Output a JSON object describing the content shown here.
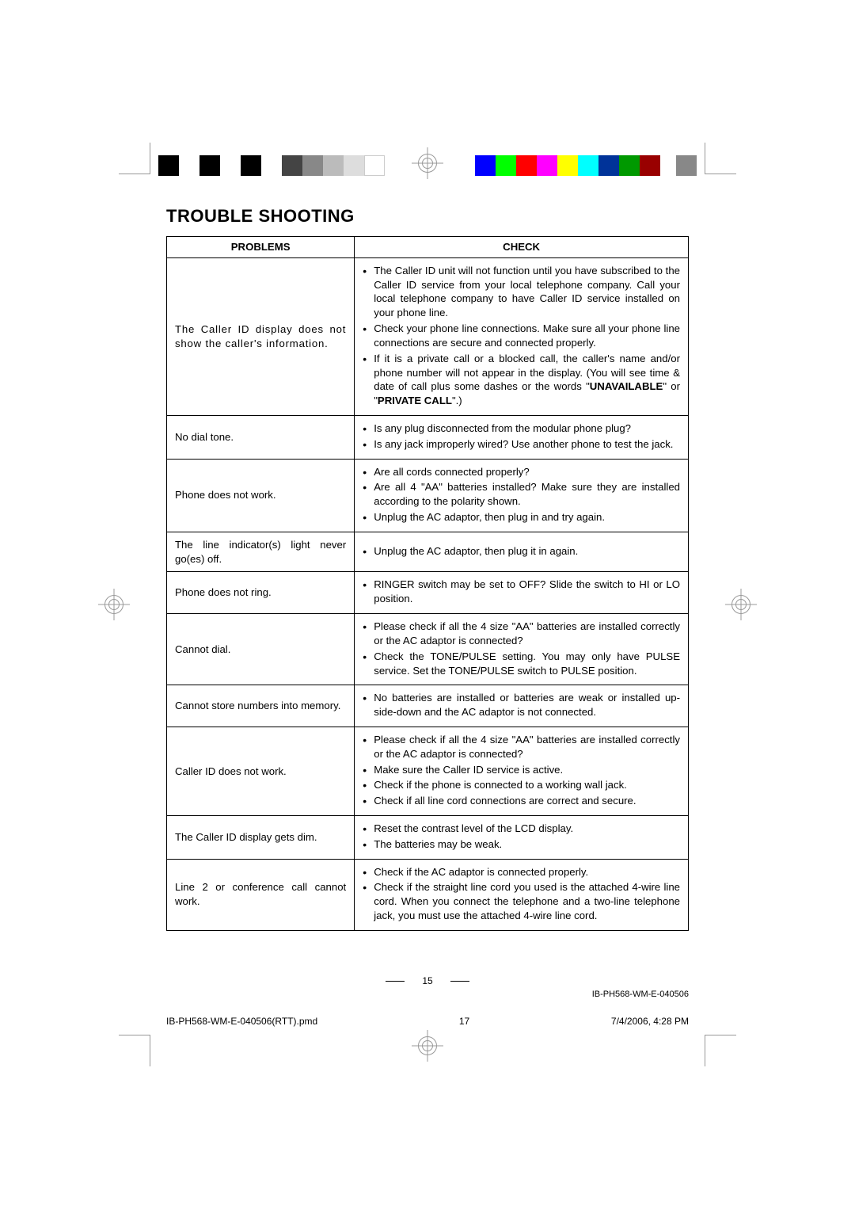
{
  "colors": {
    "swatches": [
      "#0000ff",
      "#00ff00",
      "#ff0000",
      "#ff00ff",
      "#ffff00",
      "#00ffff",
      "#003399",
      "#009900",
      "#990000"
    ]
  },
  "title": "TROUBLE SHOOTING",
  "headers": {
    "problems": "PROBLEMS",
    "check": "CHECK"
  },
  "rows": [
    {
      "problem": "The Caller ID display does not show the caller's information.",
      "checks": [
        "The Caller ID unit will not function until you have subscribed to the Caller ID service from your local telephone company. Call your local telephone company to have Caller ID service installed on your phone line.",
        "Check your phone line connections. Make sure all your phone line connections are secure and connected properly.",
        "If it is a private call or a blocked call, the caller's name and/or phone number will not appear in the display. (You will see time & date of call plus some dashes or the words \"UNAVAILABLE\" or \"PRIVATE CALL\".)"
      ]
    },
    {
      "problem": "No dial tone.",
      "checks": [
        "Is any plug disconnected from the modular phone plug?",
        "Is any jack improperly wired? Use another phone to test the jack."
      ]
    },
    {
      "problem": "Phone does not work.",
      "checks": [
        "Are all cords connected properly?",
        "Are all 4 \"AA\" batteries installed? Make sure they are installed according to the polarity shown.",
        "Unplug the AC adaptor, then plug in and try again."
      ]
    },
    {
      "problem": "The line indicator(s) light never go(es) off.",
      "checks": [
        "Unplug the AC adaptor, then plug it in again."
      ]
    },
    {
      "problem": "Phone does not ring.",
      "checks": [
        "RINGER switch may be set to OFF? Slide the switch to HI or LO position."
      ]
    },
    {
      "problem": "Cannot dial.",
      "checks": [
        "Please check if all the 4 size \"AA\" batteries are installed correctly or the AC adaptor is connected?",
        "Check the TONE/PULSE setting. You may only have PULSE service. Set the TONE/PULSE switch to PULSE position."
      ]
    },
    {
      "problem": "Cannot store numbers into memory.",
      "checks": [
        "No batteries are installed or batteries are weak or installed up-side-down and the AC adaptor is not connected."
      ]
    },
    {
      "problem": "Caller ID does not work.",
      "checks": [
        "Please check if all the 4 size \"AA\" batteries are installed correctly or the AC adaptor is connected?",
        "Make sure the Caller ID service is active.",
        "Check if the phone is connected to a working wall jack.",
        "Check if all line cord connections are correct and secure."
      ]
    },
    {
      "problem": "The Caller ID display gets dim.",
      "checks": [
        "Reset the contrast level of the LCD display.",
        "The batteries may be weak."
      ]
    },
    {
      "problem": "Line 2 or conference call cannot work.",
      "checks": [
        "Check if the AC adaptor is connected properly.",
        "Check if the straight line cord you used is the attached 4-wire line cord. When you connect the telephone and a two-line telephone jack, you must use the attached 4-wire line cord."
      ]
    }
  ],
  "emphasis": {
    "unavailable": "UNAVAILABLE",
    "private": "PRIVATE CALL"
  },
  "footer": {
    "page_number": "15",
    "doc_id": "IB-PH568-WM-E-040506",
    "imposition_file": "IB-PH568-WM-E-040506(RTT).pmd",
    "imposition_page": "17",
    "imposition_timestamp": "7/4/2006, 4:28 PM"
  }
}
